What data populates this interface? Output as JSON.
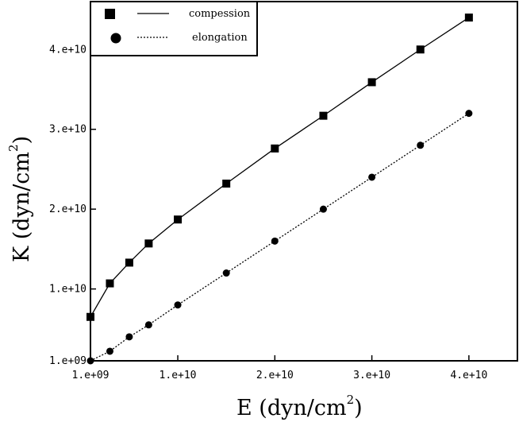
{
  "chart_data": {
    "type": "line",
    "xlabel": "E (dyn/cm",
    "xlabel_sup": "2",
    "xlabel_close": ")",
    "ylabel": "K (dyn/cm",
    "ylabel_sup": "2",
    "ylabel_close": ")",
    "xlim": [
      1000000000.0,
      45000000000.0
    ],
    "ylim": [
      1000000000.0,
      46000000000.0
    ],
    "x_ticks": [
      {
        "value": 1000000000.0,
        "label": "1.e+09"
      },
      {
        "value": 10000000000.0,
        "label": "1.e+10"
      },
      {
        "value": 20000000000.0,
        "label": "2.e+10"
      },
      {
        "value": 30000000000.0,
        "label": "3.e+10"
      },
      {
        "value": 40000000000.0,
        "label": "4.e+10"
      }
    ],
    "y_ticks": [
      {
        "value": 1000000000.0,
        "label": "1.e+09"
      },
      {
        "value": 10000000000.0,
        "label": "1.e+10"
      },
      {
        "value": 20000000000.0,
        "label": "2.e+10"
      },
      {
        "value": 30000000000.0,
        "label": "3.e+10"
      },
      {
        "value": 40000000000.0,
        "label": "4.e+10"
      }
    ],
    "grid": false,
    "legend_position": "top-left",
    "series": [
      {
        "name": "compession",
        "marker": "square",
        "line": "solid",
        "x": [
          1000000000.0,
          3000000000.0,
          5000000000.0,
          7000000000.0,
          10000000000.0,
          15000000000.0,
          20000000000.0,
          25000000000.0,
          30000000000.0,
          35000000000.0,
          40000000000.0
        ],
        "y": [
          6500000000.0,
          10700000000.0,
          13300000000.0,
          15700000000.0,
          18700000000.0,
          23200000000.0,
          27600000000.0,
          31700000000.0,
          35900000000.0,
          40000000000.0,
          44000000000.0
        ]
      },
      {
        "name": "elongation",
        "marker": "circle",
        "line": "dotted",
        "x": [
          1000000000.0,
          3000000000.0,
          5000000000.0,
          7000000000.0,
          10000000000.0,
          15000000000.0,
          20000000000.0,
          25000000000.0,
          30000000000.0,
          35000000000.0,
          40000000000.0
        ],
        "y": [
          1000000000.0,
          2200000000.0,
          4000000000.0,
          5500000000.0,
          8000000000.0,
          12000000000.0,
          16000000000.0,
          20000000000.0,
          24000000000.0,
          28000000000.0,
          32000000000.0
        ]
      }
    ]
  }
}
